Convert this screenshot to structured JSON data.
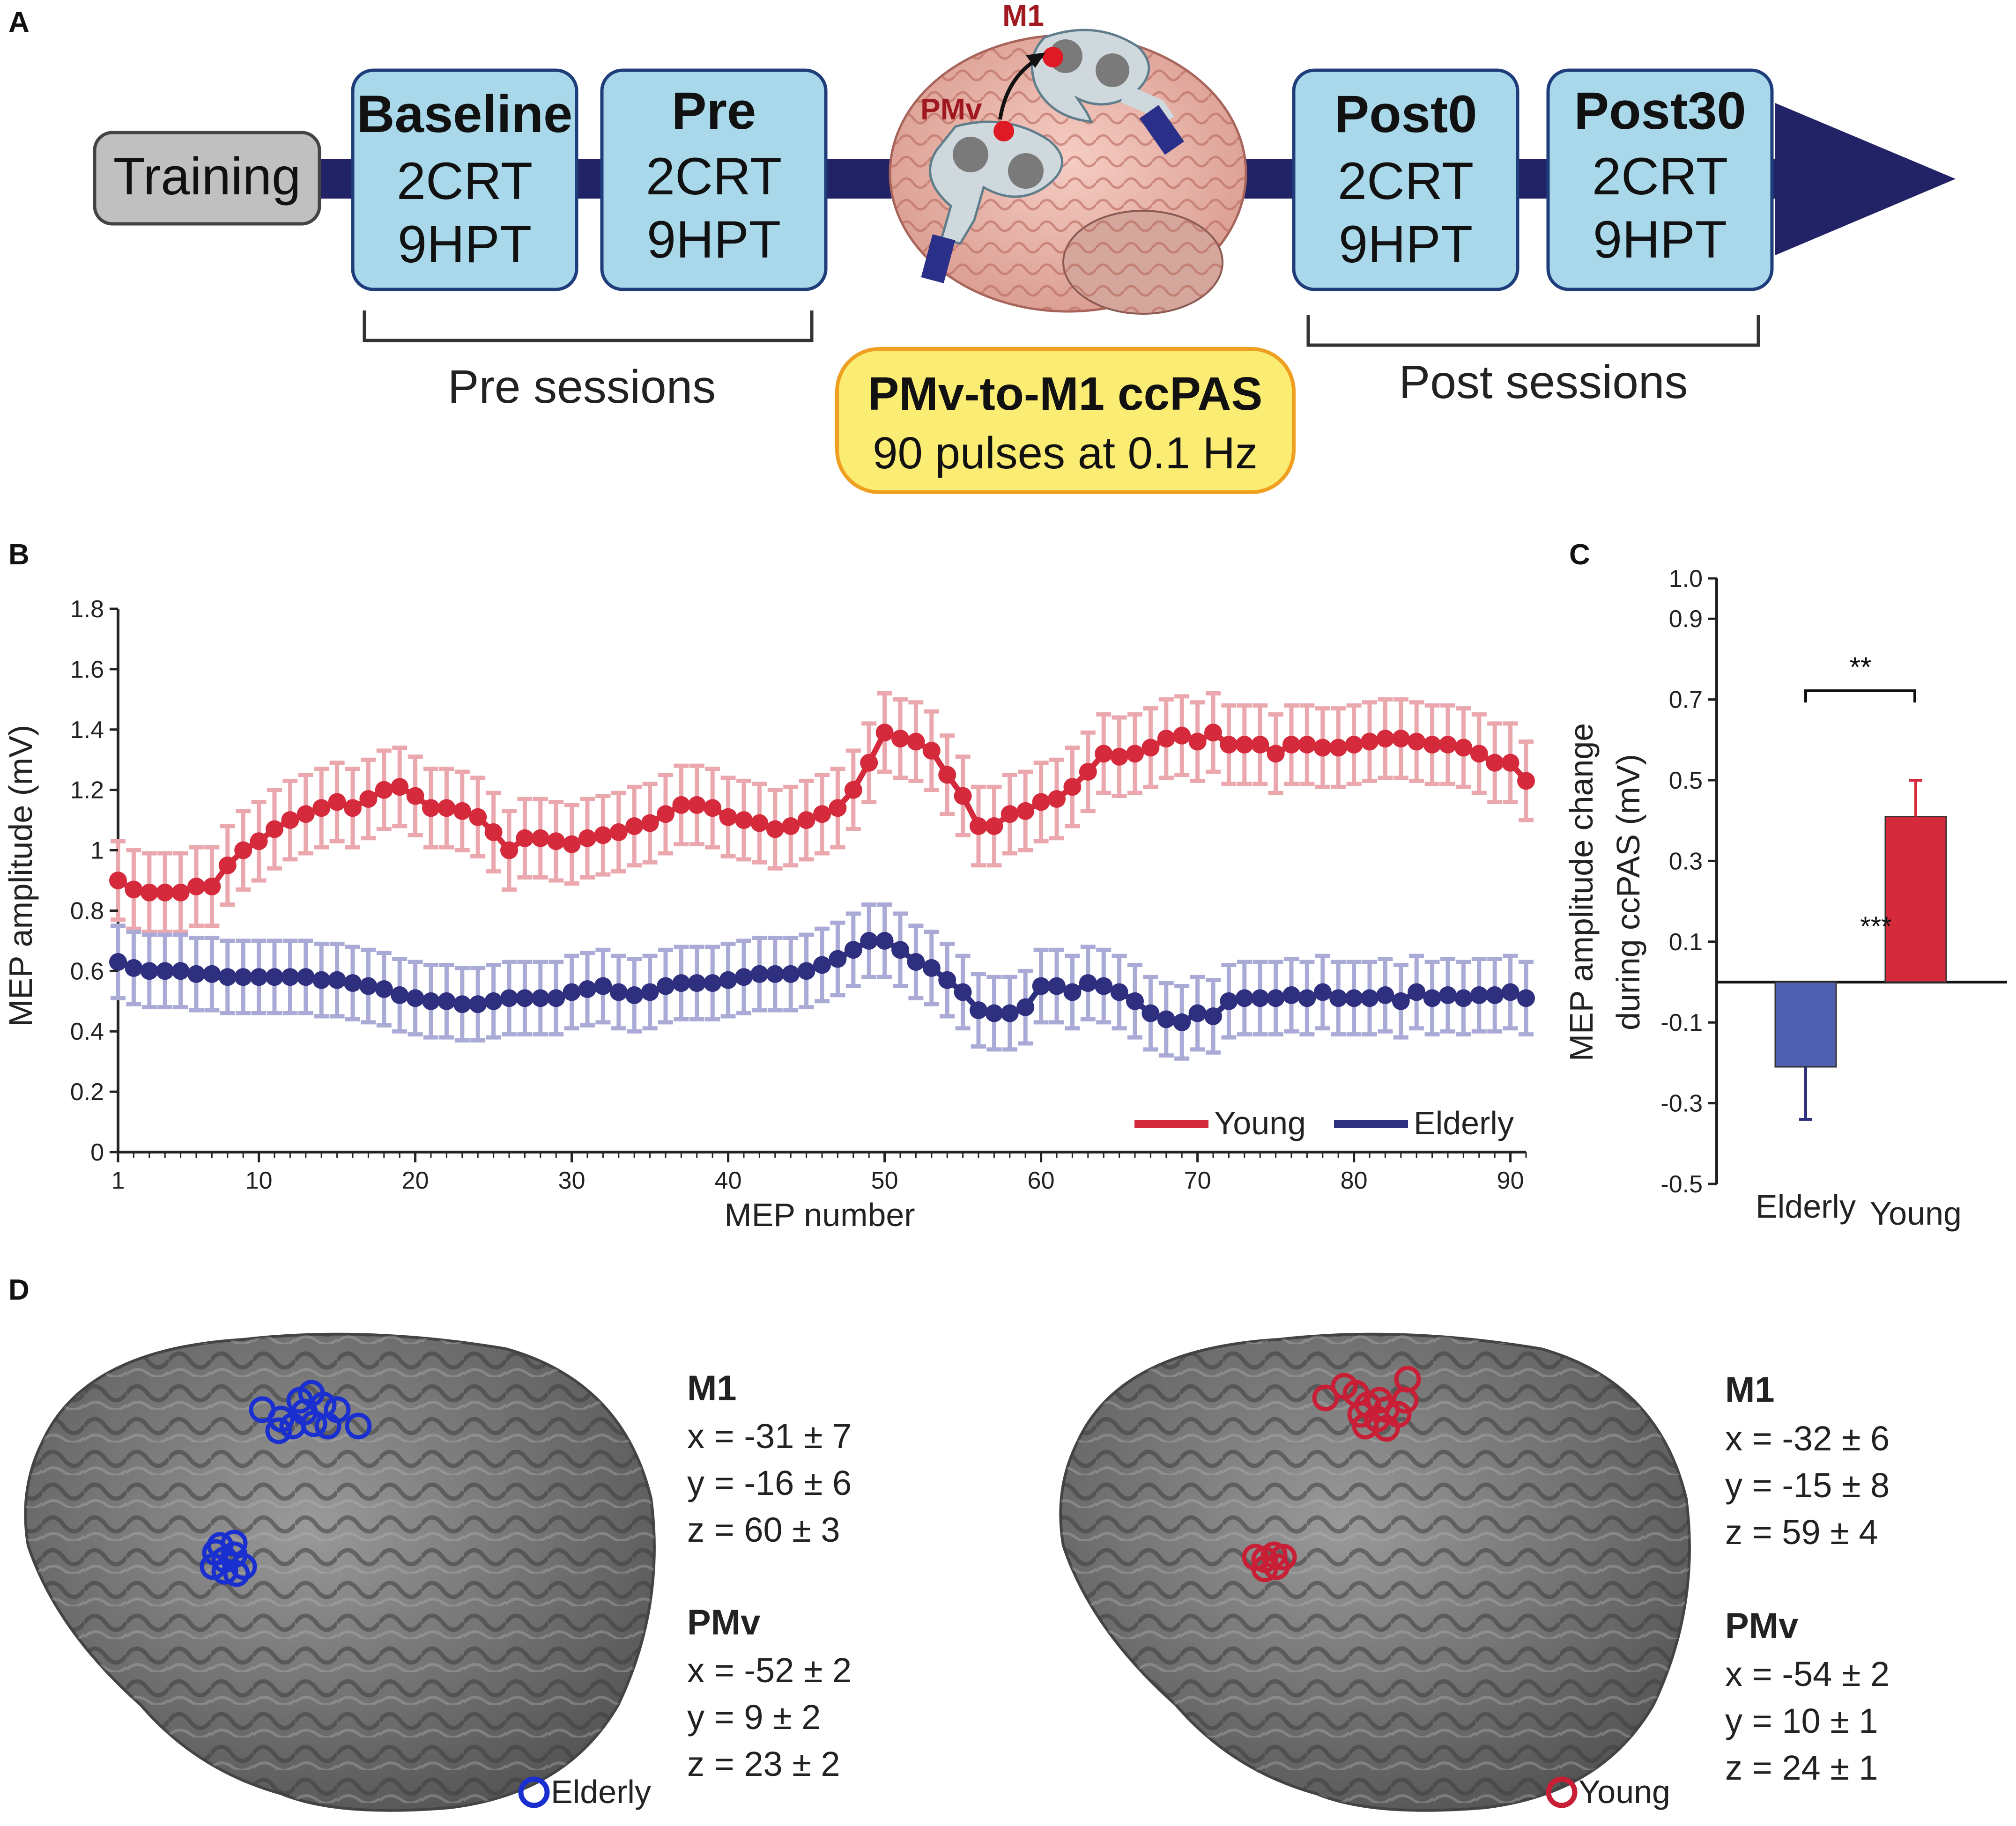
{
  "colors": {
    "young": "#d42a3c",
    "young_light": "#eaa7ad",
    "elderly": "#2e2f7e",
    "elderly_light": "#a9aad6",
    "elderly_bar": "#5060b0",
    "young_bar": "#d42a3c",
    "timeline": "#222266",
    "box_fill": "#a8d8ea",
    "box_stroke": "#1f3d7a",
    "training_fill": "#c0c0c0",
    "ccpas_fill": "#fbec74",
    "ccpas_stroke": "#f0a020",
    "brain_gray": "#7a7a7a",
    "elderly_marker": "#1a2fd0",
    "young_marker": "#c81e36"
  },
  "panelA": {
    "letter": "A",
    "training": "Training",
    "stages": [
      {
        "title": "Baseline",
        "line1": "2CRT",
        "line2": "9HPT"
      },
      {
        "title": "Pre",
        "line1": "2CRT",
        "line2": "9HPT"
      },
      {
        "title": "Post0",
        "line1": "2CRT",
        "line2": "9HPT"
      },
      {
        "title": "Post30",
        "line1": "2CRT",
        "line2": "9HPT"
      }
    ],
    "pre_sessions": "Pre sessions",
    "post_sessions": "Post sessions",
    "ccpas_title": "PMv-to-M1 ccPAS",
    "ccpas_sub": "90 pulses at 0.1 Hz",
    "m1_label": "M1",
    "pmv_label": "PMv"
  },
  "chart_data": [
    {
      "panel": "B",
      "type": "line",
      "title": "",
      "xlabel": "MEP number",
      "ylabel": "MEP amplitude (mV)",
      "xlim": [
        1,
        91
      ],
      "ylim": [
        0,
        1.8
      ],
      "xticks": [
        1,
        10,
        20,
        30,
        40,
        50,
        60,
        70,
        80,
        90
      ],
      "yticks": [
        "0",
        "0.2",
        "0.4",
        "0.6",
        "0.8",
        "1",
        "1.2",
        "1.4",
        "1.6",
        "1.8"
      ],
      "x": [
        1,
        2,
        3,
        4,
        5,
        6,
        7,
        8,
        9,
        10,
        11,
        12,
        13,
        14,
        15,
        16,
        17,
        18,
        19,
        20,
        21,
        22,
        23,
        24,
        25,
        26,
        27,
        28,
        29,
        30,
        31,
        32,
        33,
        34,
        35,
        36,
        37,
        38,
        39,
        40,
        41,
        42,
        43,
        44,
        45,
        46,
        47,
        48,
        49,
        50,
        51,
        52,
        53,
        54,
        55,
        56,
        57,
        58,
        59,
        60,
        61,
        62,
        63,
        64,
        65,
        66,
        67,
        68,
        69,
        70,
        71,
        72,
        73,
        74,
        75,
        76,
        77,
        78,
        79,
        80,
        81,
        82,
        83,
        84,
        85,
        86,
        87,
        88,
        89,
        90,
        91
      ],
      "series": [
        {
          "name": "Young",
          "values": [
            0.9,
            0.87,
            0.86,
            0.86,
            0.86,
            0.88,
            0.88,
            0.95,
            1.0,
            1.03,
            1.07,
            1.1,
            1.12,
            1.14,
            1.16,
            1.14,
            1.17,
            1.2,
            1.21,
            1.18,
            1.14,
            1.14,
            1.13,
            1.11,
            1.06,
            1.0,
            1.04,
            1.04,
            1.03,
            1.02,
            1.04,
            1.05,
            1.06,
            1.08,
            1.09,
            1.12,
            1.15,
            1.15,
            1.14,
            1.11,
            1.1,
            1.09,
            1.07,
            1.08,
            1.1,
            1.12,
            1.14,
            1.2,
            1.29,
            1.39,
            1.37,
            1.36,
            1.33,
            1.25,
            1.18,
            1.08,
            1.08,
            1.12,
            1.13,
            1.16,
            1.17,
            1.21,
            1.26,
            1.32,
            1.31,
            1.32,
            1.34,
            1.37,
            1.38,
            1.36,
            1.39,
            1.35,
            1.35,
            1.35,
            1.32,
            1.35,
            1.35,
            1.34,
            1.34,
            1.35,
            1.36,
            1.37,
            1.37,
            1.36,
            1.35,
            1.35,
            1.34,
            1.32,
            1.29,
            1.29,
            1.23
          ],
          "error": 0.13
        },
        {
          "name": "Elderly",
          "values": [
            0.63,
            0.61,
            0.6,
            0.6,
            0.6,
            0.59,
            0.59,
            0.58,
            0.58,
            0.58,
            0.58,
            0.58,
            0.58,
            0.57,
            0.57,
            0.56,
            0.55,
            0.54,
            0.52,
            0.51,
            0.5,
            0.5,
            0.49,
            0.49,
            0.5,
            0.51,
            0.51,
            0.51,
            0.51,
            0.53,
            0.54,
            0.55,
            0.53,
            0.52,
            0.53,
            0.55,
            0.56,
            0.56,
            0.56,
            0.57,
            0.58,
            0.59,
            0.59,
            0.59,
            0.6,
            0.62,
            0.64,
            0.67,
            0.7,
            0.7,
            0.67,
            0.63,
            0.61,
            0.57,
            0.53,
            0.47,
            0.46,
            0.46,
            0.48,
            0.55,
            0.55,
            0.53,
            0.56,
            0.55,
            0.53,
            0.5,
            0.46,
            0.44,
            0.43,
            0.46,
            0.45,
            0.5,
            0.51,
            0.51,
            0.51,
            0.52,
            0.51,
            0.53,
            0.51,
            0.51,
            0.51,
            0.52,
            0.5,
            0.53,
            0.51,
            0.52,
            0.51,
            0.52,
            0.52,
            0.53,
            0.51
          ],
          "error": 0.12
        }
      ],
      "legend": [
        "Young",
        "Elderly"
      ],
      "legend_position": "bottom-right"
    },
    {
      "panel": "C",
      "type": "bar",
      "title": "",
      "xlabel": "",
      "ylabel_line1": "MEP amplitude change",
      "ylabel_line2": "during ccPAS (mV)",
      "categories": [
        "Elderly",
        "Young"
      ],
      "values": [
        -0.21,
        0.41
      ],
      "errors": [
        0.13,
        0.09
      ],
      "ylim": [
        -0.5,
        1.0
      ],
      "yticks": [
        "1.0",
        "0.9",
        "0.7",
        "0.5",
        "0.3",
        "0.1",
        "-0.1",
        "-0.3",
        "-0.5"
      ],
      "annotations": {
        "between_bars": "**",
        "young_bar": "***"
      }
    }
  ],
  "panelD": {
    "letter": "D",
    "left": {
      "legend": "Elderly",
      "m1_head": "M1",
      "m1_x": "x = -31 ± 7",
      "m1_y": "y = -16 ± 6",
      "m1_z": "z = 60 ± 3",
      "pmv_head": "PMv",
      "pmv_x": "x = -52 ± 2",
      "pmv_y": "y = 9 ± 2",
      "pmv_z": "z = 23 ± 2"
    },
    "right": {
      "legend": "Young",
      "m1_head": "M1",
      "m1_x": "x = -32 ± 6",
      "m1_y": "y = -15 ± 8",
      "m1_z": "z = 59 ± 4",
      "pmv_head": "PMv",
      "pmv_x": "x = -54 ± 2",
      "pmv_y": "y = 10 ± 1",
      "pmv_z": "z = 24 ± 1"
    }
  },
  "panel_letters": {
    "B": "B",
    "C": "C"
  }
}
